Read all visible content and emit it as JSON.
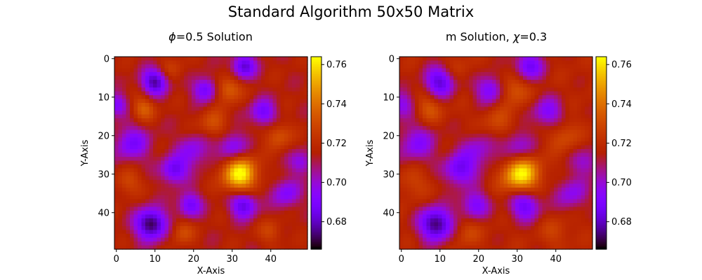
{
  "suptitle": "Standard Algorithm 50x50 Matrix",
  "chart_data": [
    {
      "type": "heatmap",
      "title_symbol": "ϕ",
      "title_rest": "=0.5 Solution",
      "xlabel": "X-Axis",
      "ylabel": "Y-Axis",
      "grid_size": [
        50,
        50
      ],
      "xticks": [
        0,
        10,
        20,
        30,
        40
      ],
      "yticks": [
        0,
        10,
        20,
        30,
        40
      ],
      "colormap": "gnuplot",
      "vmin": 0.666,
      "vmax": 0.764,
      "colorbar_ticks": [
        "0.68",
        "0.70",
        "0.72",
        "0.74",
        "0.76"
      ],
      "colorbar_values": [
        0.68,
        0.7,
        0.72,
        0.74,
        0.76
      ],
      "background": 0.715,
      "features": [
        {
          "x": 32,
          "y": 30,
          "value": 0.764,
          "r": 3.2
        },
        {
          "x": 9,
          "y": 43,
          "value": 0.668,
          "r": 2.8
        },
        {
          "x": 10,
          "y": 6,
          "value": 0.675,
          "r": 2.4
        },
        {
          "x": 33,
          "y": 2,
          "value": 0.68,
          "r": 2.2
        },
        {
          "x": 23,
          "y": 8,
          "value": 0.685,
          "r": 2.2
        },
        {
          "x": 15,
          "y": 29,
          "value": 0.684,
          "r": 2.4
        },
        {
          "x": 33,
          "y": 38,
          "value": 0.68,
          "r": 2.4
        },
        {
          "x": 38,
          "y": 14,
          "value": 0.688,
          "r": 2.4
        },
        {
          "x": 30,
          "y": 23,
          "value": 0.69,
          "r": 2.6
        },
        {
          "x": 19,
          "y": 38,
          "value": 0.686,
          "r": 2.2
        },
        {
          "x": 4,
          "y": 22,
          "value": 0.69,
          "r": 3.2
        },
        {
          "x": 20,
          "y": 24,
          "value": 0.695,
          "r": 3.0
        },
        {
          "x": 44,
          "y": 35,
          "value": 0.692,
          "r": 2.6
        },
        {
          "x": 0,
          "y": 12,
          "value": 0.69,
          "r": 2.0
        },
        {
          "x": 48,
          "y": 27,
          "value": 0.695,
          "r": 2.2
        },
        {
          "x": 29,
          "y": 8,
          "value": 0.738,
          "r": 2.4
        },
        {
          "x": 7,
          "y": 13,
          "value": 0.736,
          "r": 2.2
        },
        {
          "x": 25,
          "y": 17,
          "value": 0.732,
          "r": 2.6
        },
        {
          "x": 42,
          "y": 20,
          "value": 0.733,
          "r": 2.4
        },
        {
          "x": 3,
          "y": 32,
          "value": 0.73,
          "r": 2.4
        },
        {
          "x": 17,
          "y": 45,
          "value": 0.731,
          "r": 2.2
        },
        {
          "x": 40,
          "y": 45,
          "value": 0.728,
          "r": 2.2
        },
        {
          "x": 14,
          "y": 3,
          "value": 0.726,
          "r": 2.4
        }
      ]
    },
    {
      "type": "heatmap",
      "title_prefix": "m Solution, ",
      "title_symbol": "χ",
      "title_rest": "=0.3",
      "xlabel": "X-Axis",
      "ylabel": "Y-Axis",
      "grid_size": [
        50,
        50
      ],
      "xticks": [
        0,
        10,
        20,
        30,
        40
      ],
      "yticks": [
        0,
        10,
        20,
        30,
        40
      ],
      "colormap": "gnuplot",
      "vmin": 0.666,
      "vmax": 0.764,
      "colorbar_ticks": [
        "0.68",
        "0.70",
        "0.72",
        "0.74",
        "0.76"
      ],
      "colorbar_values": [
        0.68,
        0.7,
        0.72,
        0.74,
        0.76
      ],
      "background": 0.717,
      "features": [
        {
          "x": 31,
          "y": 30,
          "value": 0.764,
          "r": 3.4
        },
        {
          "x": 9,
          "y": 43,
          "value": 0.67,
          "r": 3.0
        },
        {
          "x": 10,
          "y": 6,
          "value": 0.68,
          "r": 2.8
        },
        {
          "x": 33,
          "y": 2,
          "value": 0.685,
          "r": 2.6
        },
        {
          "x": 23,
          "y": 8,
          "value": 0.688,
          "r": 2.6
        },
        {
          "x": 15,
          "y": 29,
          "value": 0.686,
          "r": 2.8
        },
        {
          "x": 32,
          "y": 38,
          "value": 0.684,
          "r": 2.8
        },
        {
          "x": 38,
          "y": 14,
          "value": 0.692,
          "r": 2.8
        },
        {
          "x": 30,
          "y": 23,
          "value": 0.694,
          "r": 3.0
        },
        {
          "x": 19,
          "y": 38,
          "value": 0.69,
          "r": 2.6
        },
        {
          "x": 4,
          "y": 22,
          "value": 0.694,
          "r": 3.6
        },
        {
          "x": 20,
          "y": 24,
          "value": 0.698,
          "r": 3.4
        },
        {
          "x": 44,
          "y": 35,
          "value": 0.696,
          "r": 3.0
        },
        {
          "x": 0,
          "y": 12,
          "value": 0.694,
          "r": 2.4
        },
        {
          "x": 48,
          "y": 27,
          "value": 0.699,
          "r": 2.6
        },
        {
          "x": 29,
          "y": 8,
          "value": 0.736,
          "r": 2.8
        },
        {
          "x": 7,
          "y": 13,
          "value": 0.734,
          "r": 2.6
        },
        {
          "x": 25,
          "y": 17,
          "value": 0.73,
          "r": 3.0
        },
        {
          "x": 42,
          "y": 20,
          "value": 0.731,
          "r": 2.8
        },
        {
          "x": 3,
          "y": 32,
          "value": 0.728,
          "r": 2.8
        },
        {
          "x": 17,
          "y": 45,
          "value": 0.729,
          "r": 2.6
        },
        {
          "x": 40,
          "y": 45,
          "value": 0.727,
          "r": 2.6
        },
        {
          "x": 14,
          "y": 3,
          "value": 0.725,
          "r": 2.8
        }
      ]
    }
  ]
}
